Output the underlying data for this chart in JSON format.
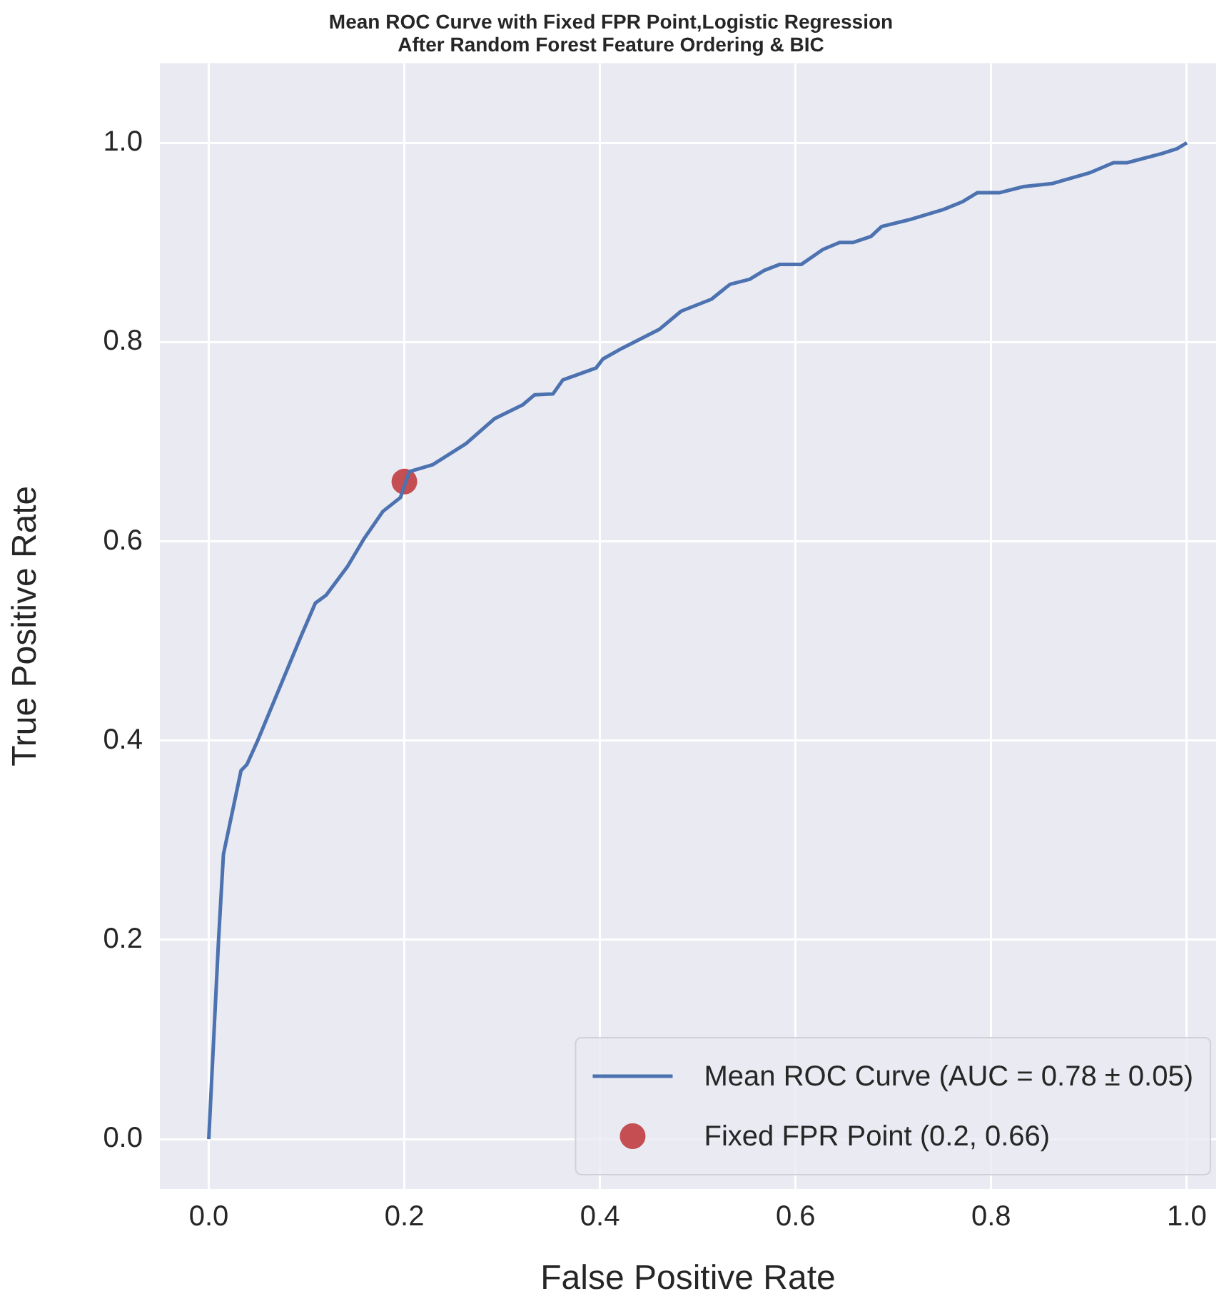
{
  "chart_data": {
    "type": "line",
    "title": "Mean ROC Curve with Fixed FPR Point,Logistic Regression\nAfter Random Forest Feature Ordering & BIC",
    "xlabel": "False Positive Rate",
    "ylabel": "True Positive Rate",
    "xlim": [
      -0.05,
      1.03
    ],
    "ylim": [
      -0.05,
      1.08
    ],
    "xticks": [
      {
        "value": 0,
        "label": "0.0"
      },
      0.2,
      0.4,
      0.6,
      0.8,
      {
        "value": 1,
        "label": "1.0"
      }
    ],
    "yticks": [
      {
        "value": 0,
        "label": "0.0"
      },
      0.2,
      0.4,
      0.6,
      0.8,
      {
        "value": 1,
        "label": "1.0"
      }
    ],
    "grid": true,
    "legend": "bottom right",
    "line_style": "solid",
    "series": [
      {
        "name": "Mean ROC Curve (AUC = 0.78 ± 0.05)",
        "marker": "none",
        "color": "#4c72b0",
        "x": [
          0,
          0.01,
          0.015,
          0.033,
          0.039,
          0.05,
          0.094,
          0.109,
          0.12,
          0.142,
          0.159,
          0.178,
          0.196,
          0.205,
          0.229,
          0.263,
          0.292,
          0.321,
          0.333,
          0.352,
          0.362,
          0.396,
          0.403,
          0.423,
          0.461,
          0.483,
          0.514,
          0.533,
          0.553,
          0.568,
          0.584,
          0.606,
          0.628,
          0.645,
          0.659,
          0.677,
          0.688,
          0.717,
          0.751,
          0.771,
          0.786,
          0.809,
          0.833,
          0.862,
          0.901,
          0.925,
          0.939,
          0.974,
          0.99,
          1.0
        ],
        "values": [
          0,
          0.2,
          0.286,
          0.37,
          0.376,
          0.4,
          0.504,
          0.538,
          0.546,
          0.575,
          0.603,
          0.63,
          0.644,
          0.67,
          0.677,
          0.698,
          0.723,
          0.737,
          0.747,
          0.748,
          0.762,
          0.774,
          0.783,
          0.794,
          0.813,
          0.831,
          0.843,
          0.858,
          0.863,
          0.872,
          0.878,
          0.878,
          0.893,
          0.9,
          0.9,
          0.906,
          0.916,
          0.923,
          0.933,
          0.941,
          0.95,
          0.95,
          0.956,
          0.959,
          0.97,
          0.98,
          0.98,
          0.989,
          0.994,
          1.0
        ]
      },
      {
        "name": "Fixed FPR Point (0.2, 0.66)",
        "type": "scatter",
        "marker": "circle",
        "color": "#c44e52",
        "x": [
          0.2
        ],
        "values": [
          0.66
        ]
      }
    ]
  }
}
